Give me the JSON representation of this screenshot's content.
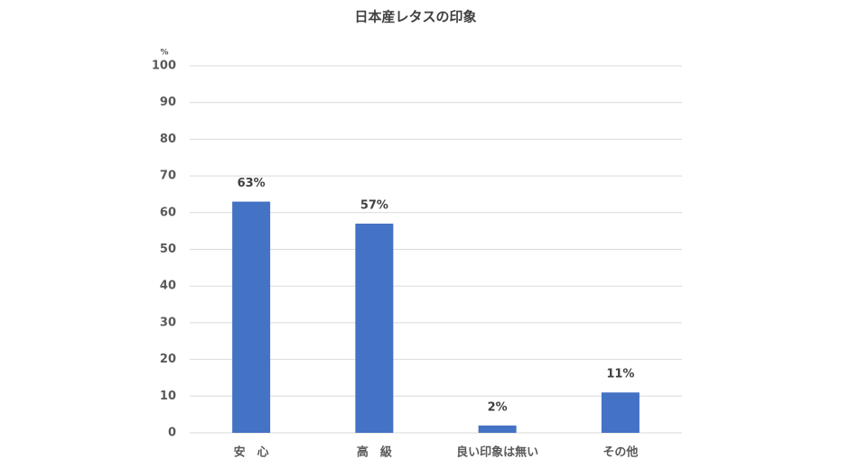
{
  "chart_data": {
    "type": "bar",
    "title": "日本産レタスの印象",
    "y_unit": "%",
    "categories": [
      "安　心",
      "高　級",
      "良い印象は無い",
      "その他"
    ],
    "values": [
      63,
      57,
      2,
      11
    ],
    "value_labels": [
      "63%",
      "57%",
      "2%",
      "11%"
    ],
    "color": "#4472c4",
    "ylim": [
      0,
      100
    ],
    "yticks": [
      0,
      10,
      20,
      30,
      40,
      50,
      60,
      70,
      80,
      90,
      100
    ],
    "grid": true
  }
}
